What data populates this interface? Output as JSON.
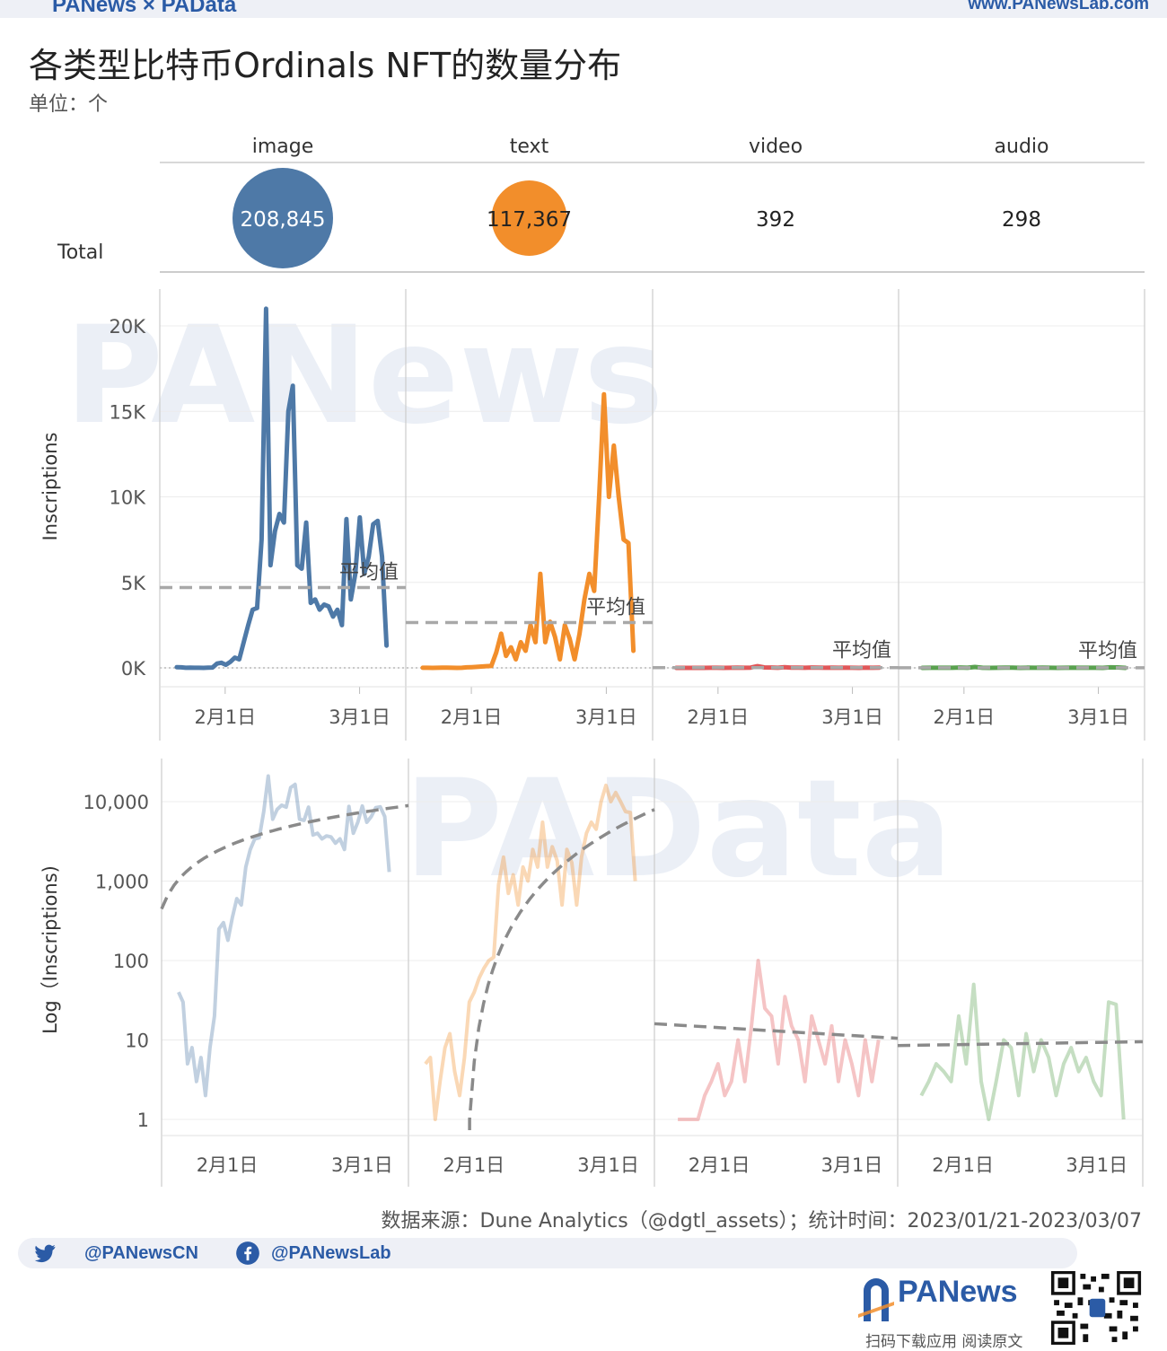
{
  "header": {
    "brand": "PANews × PAData",
    "site": "www.PANewsLab.com"
  },
  "title": "各类型比特币Ordinals NFT的数量分布",
  "subtitle": "单位：个",
  "colors": {
    "image": "#4e79a7",
    "text": "#f28e2b",
    "video": "#e15759",
    "audio": "#59a14f",
    "accent": "#2b5ba6"
  },
  "chart_data": [
    {
      "type": "table",
      "row_label": "Total",
      "categories": [
        "image",
        "text",
        "video",
        "audio"
      ],
      "values": [
        208845,
        117367,
        392,
        298
      ],
      "value_labels": [
        "208,845",
        "117,367",
        "392",
        "298"
      ]
    },
    {
      "type": "line",
      "ylabel": "Inscriptions",
      "y_ticks": [
        "0K",
        "5K",
        "10K",
        "15K",
        "20K"
      ],
      "ylim": [
        0,
        22000
      ],
      "x_ticks": [
        "2月1日",
        "3月1日"
      ],
      "mean_label": "平均值",
      "series": [
        {
          "name": "image",
          "mean": 4700,
          "values": [
            40,
            30,
            5,
            8,
            3,
            6,
            2,
            8,
            20,
            250,
            300,
            180,
            350,
            600,
            500,
            1500,
            2500,
            3400,
            3500,
            7500,
            21000,
            6000,
            8000,
            9000,
            8500,
            15000,
            16500,
            6000,
            5800,
            8500,
            3800,
            4000,
            3400,
            3700,
            3600,
            3000,
            3400,
            2500,
            8700,
            4000,
            5500,
            8800,
            5500,
            6500,
            8400,
            8600,
            6500,
            1300
          ]
        },
        {
          "name": "text",
          "mean": 2650,
          "values": [
            5,
            6,
            1,
            3,
            8,
            12,
            4,
            2,
            6,
            30,
            40,
            60,
            80,
            100,
            110,
            900,
            2000,
            700,
            1200,
            500,
            1500,
            1000,
            2500,
            1500,
            5500,
            1500,
            2700,
            1800,
            500,
            2500,
            1700,
            500,
            2000,
            4000,
            5500,
            4500,
            10000,
            16000,
            10000,
            13000,
            10000,
            7500,
            7300,
            1000
          ]
        },
        {
          "name": "video",
          "mean": 16,
          "values": [
            1,
            1,
            1,
            1,
            2,
            3,
            5,
            2,
            3,
            10,
            3,
            15,
            100,
            25,
            20,
            5,
            35,
            15,
            10,
            3,
            20,
            10,
            5,
            15,
            3,
            10,
            5,
            2,
            10,
            3,
            10
          ]
        },
        {
          "name": "audio",
          "mean": 9,
          "values": [
            2,
            3,
            5,
            4,
            3,
            20,
            5,
            50,
            3,
            1,
            3,
            10,
            8,
            2,
            12,
            4,
            10,
            6,
            2,
            5,
            8,
            4,
            6,
            3,
            2,
            30,
            28,
            1
          ]
        }
      ]
    },
    {
      "type": "line",
      "ylabel": "Log（Inscriptions)",
      "y_ticks": [
        "1",
        "10",
        "100",
        "1,000",
        "10,000"
      ],
      "scale": "log",
      "x_ticks": [
        "2月1日",
        "3月1日"
      ],
      "trend": "logarithmic trend line per type"
    }
  ],
  "footer": {
    "source": "数据来源：Dune Analytics（@dgtl_assets）；统计时间：2023/01/21-2023/03/07",
    "twitter": "@PANewsCN",
    "facebook": "@PANewsLab",
    "logo_name": "PANews",
    "logo_tag": "扫码下载应用  阅读原文"
  }
}
